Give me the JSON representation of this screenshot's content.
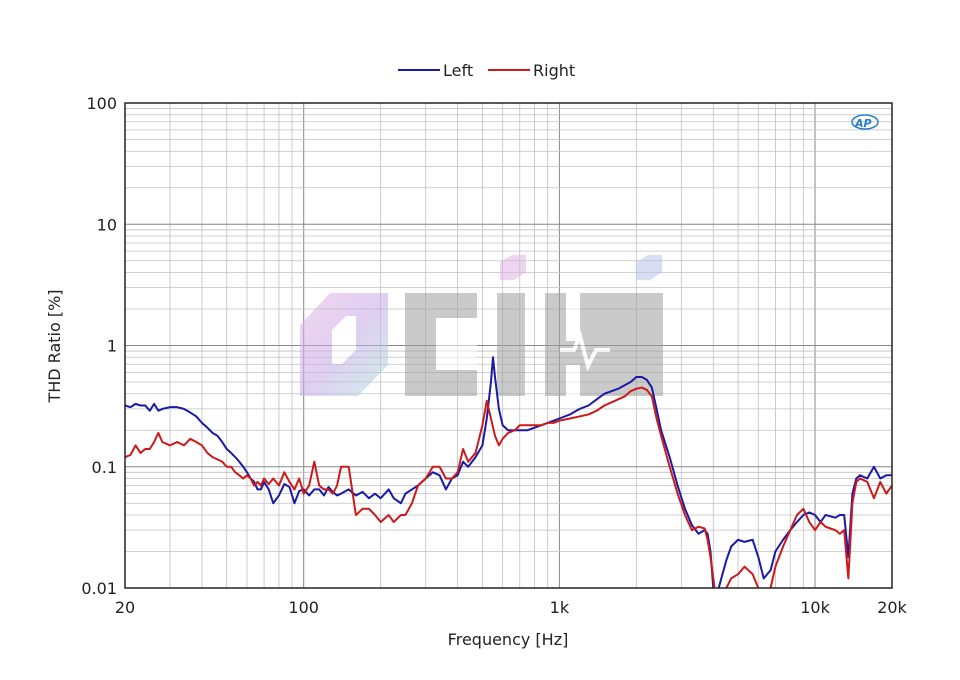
{
  "chart_data": {
    "type": "line",
    "xlabel": "Frequency [Hz]",
    "ylabel": "THD Ratio [%]",
    "x_scale": "log",
    "y_scale": "log",
    "xlim": [
      20,
      20000
    ],
    "ylim": [
      0.01,
      100
    ],
    "x_ticks": [
      {
        "value": 20,
        "label": "20"
      },
      {
        "value": 100,
        "label": "100"
      },
      {
        "value": 1000,
        "label": "1k"
      },
      {
        "value": 10000,
        "label": "10k"
      },
      {
        "value": 20000,
        "label": "20k"
      }
    ],
    "y_ticks": [
      {
        "value": 0.01,
        "label": "0.01"
      },
      {
        "value": 0.1,
        "label": "0.1"
      },
      {
        "value": 1,
        "label": "1"
      },
      {
        "value": 10,
        "label": "10"
      },
      {
        "value": 100,
        "label": "100"
      }
    ],
    "grid": true,
    "legend_position": "top-center",
    "series": [
      {
        "name": "Left",
        "color": "#1a1aa6",
        "points": [
          [
            20,
            0.32
          ],
          [
            21,
            0.31
          ],
          [
            22,
            0.33
          ],
          [
            23,
            0.32
          ],
          [
            24,
            0.32
          ],
          [
            25,
            0.29
          ],
          [
            26,
            0.33
          ],
          [
            27,
            0.29
          ],
          [
            28,
            0.3
          ],
          [
            30,
            0.31
          ],
          [
            32,
            0.31
          ],
          [
            34,
            0.3
          ],
          [
            36,
            0.28
          ],
          [
            38,
            0.26
          ],
          [
            40,
            0.23
          ],
          [
            42,
            0.21
          ],
          [
            44,
            0.19
          ],
          [
            46,
            0.18
          ],
          [
            48,
            0.16
          ],
          [
            50,
            0.14
          ],
          [
            52,
            0.13
          ],
          [
            54,
            0.12
          ],
          [
            56,
            0.11
          ],
          [
            58,
            0.1
          ],
          [
            60,
            0.09
          ],
          [
            62,
            0.08
          ],
          [
            64,
            0.075
          ],
          [
            66,
            0.065
          ],
          [
            68,
            0.065
          ],
          [
            70,
            0.075
          ],
          [
            73,
            0.065
          ],
          [
            76,
            0.05
          ],
          [
            80,
            0.058
          ],
          [
            84,
            0.072
          ],
          [
            88,
            0.068
          ],
          [
            92,
            0.05
          ],
          [
            96,
            0.063
          ],
          [
            100,
            0.065
          ],
          [
            105,
            0.058
          ],
          [
            110,
            0.065
          ],
          [
            115,
            0.065
          ],
          [
            120,
            0.058
          ],
          [
            125,
            0.068
          ],
          [
            130,
            0.062
          ],
          [
            135,
            0.058
          ],
          [
            140,
            0.06
          ],
          [
            150,
            0.065
          ],
          [
            160,
            0.058
          ],
          [
            170,
            0.062
          ],
          [
            180,
            0.055
          ],
          [
            190,
            0.06
          ],
          [
            200,
            0.055
          ],
          [
            215,
            0.065
          ],
          [
            225,
            0.055
          ],
          [
            240,
            0.05
          ],
          [
            250,
            0.06
          ],
          [
            265,
            0.065
          ],
          [
            280,
            0.07
          ],
          [
            300,
            0.08
          ],
          [
            320,
            0.09
          ],
          [
            340,
            0.085
          ],
          [
            360,
            0.065
          ],
          [
            380,
            0.08
          ],
          [
            400,
            0.085
          ],
          [
            420,
            0.11
          ],
          [
            440,
            0.1
          ],
          [
            470,
            0.12
          ],
          [
            500,
            0.15
          ],
          [
            520,
            0.25
          ],
          [
            540,
            0.5
          ],
          [
            550,
            0.8
          ],
          [
            560,
            0.55
          ],
          [
            580,
            0.3
          ],
          [
            600,
            0.22
          ],
          [
            630,
            0.2
          ],
          [
            670,
            0.2
          ],
          [
            700,
            0.2
          ],
          [
            750,
            0.2
          ],
          [
            800,
            0.21
          ],
          [
            850,
            0.22
          ],
          [
            900,
            0.23
          ],
          [
            950,
            0.24
          ],
          [
            1000,
            0.25
          ],
          [
            1100,
            0.27
          ],
          [
            1200,
            0.3
          ],
          [
            1300,
            0.32
          ],
          [
            1400,
            0.36
          ],
          [
            1500,
            0.4
          ],
          [
            1600,
            0.42
          ],
          [
            1700,
            0.44
          ],
          [
            1800,
            0.47
          ],
          [
            1900,
            0.5
          ],
          [
            2000,
            0.55
          ],
          [
            2100,
            0.55
          ],
          [
            2200,
            0.52
          ],
          [
            2300,
            0.45
          ],
          [
            2400,
            0.3
          ],
          [
            2500,
            0.2
          ],
          [
            2700,
            0.12
          ],
          [
            2900,
            0.07
          ],
          [
            3100,
            0.045
          ],
          [
            3300,
            0.033
          ],
          [
            3500,
            0.028
          ],
          [
            3700,
            0.03
          ],
          [
            3800,
            0.028
          ],
          [
            3900,
            0.02
          ],
          [
            4000,
            0.01
          ],
          [
            4100,
            0.007
          ],
          [
            4200,
            0.01
          ],
          [
            4500,
            0.017
          ],
          [
            4700,
            0.022
          ],
          [
            5000,
            0.025
          ],
          [
            5300,
            0.024
          ],
          [
            5700,
            0.025
          ],
          [
            6000,
            0.018
          ],
          [
            6300,
            0.012
          ],
          [
            6700,
            0.014
          ],
          [
            7000,
            0.02
          ],
          [
            7500,
            0.025
          ],
          [
            8000,
            0.03
          ],
          [
            8500,
            0.035
          ],
          [
            9000,
            0.04
          ],
          [
            9500,
            0.042
          ],
          [
            10000,
            0.04
          ],
          [
            10500,
            0.035
          ],
          [
            11000,
            0.04
          ],
          [
            12000,
            0.038
          ],
          [
            12500,
            0.04
          ],
          [
            13000,
            0.04
          ],
          [
            13500,
            0.018
          ],
          [
            14000,
            0.06
          ],
          [
            14500,
            0.08
          ],
          [
            15000,
            0.085
          ],
          [
            16000,
            0.08
          ],
          [
            17000,
            0.1
          ],
          [
            18000,
            0.08
          ],
          [
            19000,
            0.085
          ],
          [
            20000,
            0.085
          ]
        ]
      },
      {
        "name": "Right",
        "color": "#cc1a1a",
        "points": [
          [
            20,
            0.12
          ],
          [
            21,
            0.125
          ],
          [
            22,
            0.15
          ],
          [
            23,
            0.13
          ],
          [
            24,
            0.14
          ],
          [
            25,
            0.14
          ],
          [
            26,
            0.16
          ],
          [
            27,
            0.19
          ],
          [
            28,
            0.16
          ],
          [
            30,
            0.15
          ],
          [
            32,
            0.16
          ],
          [
            34,
            0.15
          ],
          [
            36,
            0.17
          ],
          [
            38,
            0.16
          ],
          [
            40,
            0.15
          ],
          [
            42,
            0.13
          ],
          [
            44,
            0.12
          ],
          [
            46,
            0.115
          ],
          [
            48,
            0.11
          ],
          [
            50,
            0.1
          ],
          [
            52,
            0.1
          ],
          [
            54,
            0.09
          ],
          [
            56,
            0.085
          ],
          [
            58,
            0.08
          ],
          [
            60,
            0.085
          ],
          [
            62,
            0.08
          ],
          [
            64,
            0.07
          ],
          [
            66,
            0.075
          ],
          [
            68,
            0.07
          ],
          [
            70,
            0.08
          ],
          [
            73,
            0.072
          ],
          [
            76,
            0.08
          ],
          [
            80,
            0.07
          ],
          [
            84,
            0.09
          ],
          [
            88,
            0.075
          ],
          [
            92,
            0.065
          ],
          [
            96,
            0.08
          ],
          [
            100,
            0.06
          ],
          [
            105,
            0.07
          ],
          [
            110,
            0.11
          ],
          [
            115,
            0.07
          ],
          [
            120,
            0.065
          ],
          [
            125,
            0.065
          ],
          [
            130,
            0.06
          ],
          [
            135,
            0.07
          ],
          [
            140,
            0.1
          ],
          [
            150,
            0.1
          ],
          [
            160,
            0.04
          ],
          [
            170,
            0.045
          ],
          [
            180,
            0.045
          ],
          [
            190,
            0.04
          ],
          [
            200,
            0.035
          ],
          [
            215,
            0.04
          ],
          [
            225,
            0.035
          ],
          [
            240,
            0.04
          ],
          [
            250,
            0.04
          ],
          [
            265,
            0.05
          ],
          [
            280,
            0.07
          ],
          [
            300,
            0.08
          ],
          [
            320,
            0.1
          ],
          [
            340,
            0.1
          ],
          [
            360,
            0.08
          ],
          [
            380,
            0.08
          ],
          [
            400,
            0.09
          ],
          [
            420,
            0.14
          ],
          [
            440,
            0.11
          ],
          [
            470,
            0.13
          ],
          [
            500,
            0.22
          ],
          [
            520,
            0.35
          ],
          [
            540,
            0.25
          ],
          [
            560,
            0.18
          ],
          [
            580,
            0.15
          ],
          [
            600,
            0.17
          ],
          [
            630,
            0.19
          ],
          [
            670,
            0.2
          ],
          [
            700,
            0.22
          ],
          [
            750,
            0.22
          ],
          [
            800,
            0.22
          ],
          [
            850,
            0.22
          ],
          [
            900,
            0.23
          ],
          [
            950,
            0.23
          ],
          [
            1000,
            0.24
          ],
          [
            1100,
            0.25
          ],
          [
            1200,
            0.26
          ],
          [
            1300,
            0.27
          ],
          [
            1400,
            0.29
          ],
          [
            1500,
            0.32
          ],
          [
            1600,
            0.34
          ],
          [
            1700,
            0.36
          ],
          [
            1800,
            0.38
          ],
          [
            1900,
            0.42
          ],
          [
            2000,
            0.44
          ],
          [
            2100,
            0.45
          ],
          [
            2200,
            0.43
          ],
          [
            2300,
            0.38
          ],
          [
            2400,
            0.25
          ],
          [
            2500,
            0.18
          ],
          [
            2700,
            0.1
          ],
          [
            2900,
            0.06
          ],
          [
            3100,
            0.04
          ],
          [
            3300,
            0.03
          ],
          [
            3500,
            0.032
          ],
          [
            3700,
            0.031
          ],
          [
            3800,
            0.025
          ],
          [
            3900,
            0.018
          ],
          [
            4000,
            0.012
          ],
          [
            4100,
            0.008
          ],
          [
            4200,
            0.007
          ],
          [
            4500,
            0.01
          ],
          [
            4700,
            0.012
          ],
          [
            5000,
            0.013
          ],
          [
            5300,
            0.015
          ],
          [
            5700,
            0.013
          ],
          [
            6000,
            0.01
          ],
          [
            6300,
            0.008
          ],
          [
            6700,
            0.01
          ],
          [
            7000,
            0.015
          ],
          [
            7500,
            0.022
          ],
          [
            8000,
            0.03
          ],
          [
            8500,
            0.04
          ],
          [
            9000,
            0.045
          ],
          [
            9500,
            0.035
          ],
          [
            10000,
            0.03
          ],
          [
            10500,
            0.035
          ],
          [
            11000,
            0.032
          ],
          [
            12000,
            0.03
          ],
          [
            12500,
            0.028
          ],
          [
            13000,
            0.03
          ],
          [
            13500,
            0.012
          ],
          [
            14000,
            0.05
          ],
          [
            14500,
            0.075
          ],
          [
            15000,
            0.08
          ],
          [
            16000,
            0.075
          ],
          [
            17000,
            0.055
          ],
          [
            18000,
            0.075
          ],
          [
            19000,
            0.06
          ],
          [
            20000,
            0.07
          ]
        ]
      }
    ]
  }
}
